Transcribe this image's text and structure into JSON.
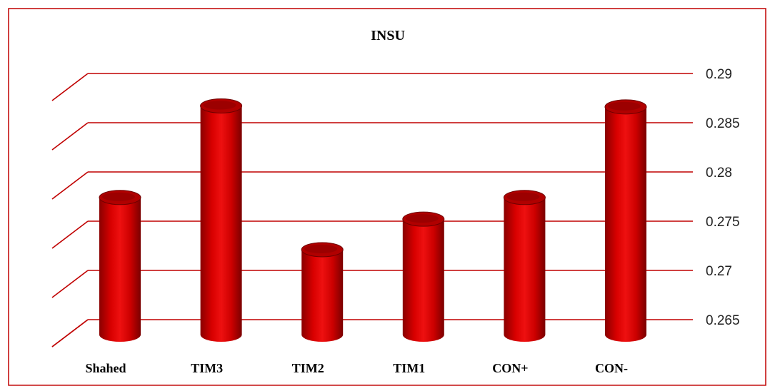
{
  "chart_data": {
    "type": "bar",
    "title": "INSU",
    "xlabel": "",
    "ylabel": "",
    "categories": [
      "Shahed",
      "TIM3",
      "TIM2",
      "TIM1",
      "CON+",
      "CON-"
    ],
    "values": [
      0.279,
      0.2883,
      0.2737,
      0.2768,
      0.279,
      0.2882
    ],
    "ylim": [
      0.26,
      0.29
    ],
    "yticks": [
      "0.29",
      "0.285",
      "0.28",
      "0.275",
      "0.27",
      "0.265"
    ],
    "ytick_values": [
      0.29,
      0.285,
      0.28,
      0.275,
      0.27,
      0.265
    ],
    "grid": true,
    "legend": "none",
    "colors": {
      "bar": "#cc0000",
      "bar_dark": "#7a0000",
      "bar_light": "#e02020",
      "grid": "#c00000",
      "frame": "#c00000"
    }
  }
}
